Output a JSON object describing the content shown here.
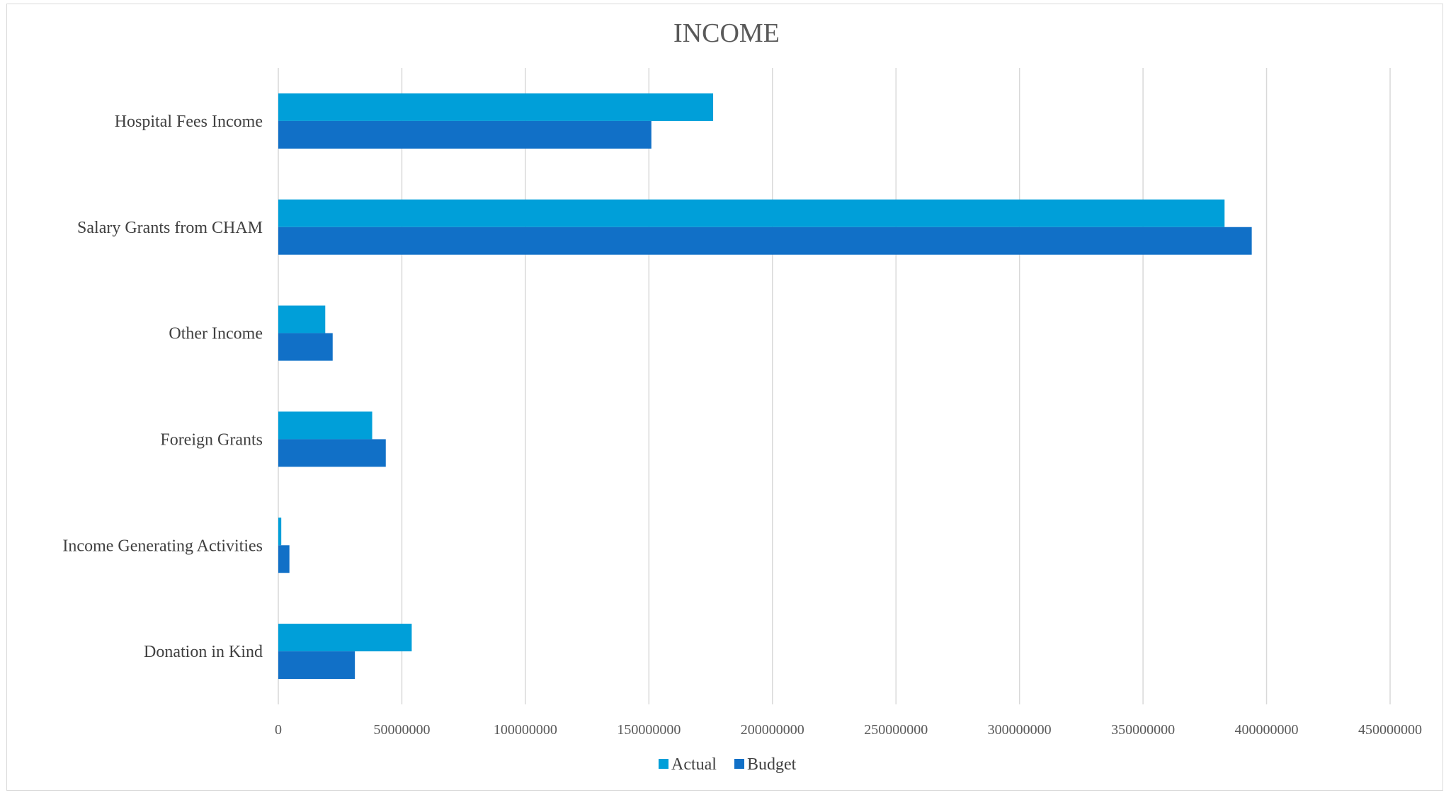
{
  "chart_data": {
    "type": "bar",
    "orientation": "horizontal",
    "title": "INCOME",
    "categories": [
      "Hospital Fees Income",
      "Salary Grants from CHAM",
      "Other Income",
      "Foreign Grants",
      "Income Generating Activities",
      "Donation in Kind"
    ],
    "series": [
      {
        "name": "Actual",
        "color": "#009fd9",
        "values": [
          176000000,
          383000000,
          19000000,
          38000000,
          1200000,
          54000000
        ]
      },
      {
        "name": "Budget",
        "color": "#1170c7",
        "values": [
          151000000,
          394000000,
          22000000,
          43500000,
          4500000,
          31000000
        ]
      }
    ],
    "xlim": [
      0,
      450000000
    ],
    "tick_values": [
      0,
      50000000,
      100000000,
      150000000,
      200000000,
      250000000,
      300000000,
      350000000,
      400000000,
      450000000
    ],
    "tick_labels": [
      "0",
      "50000000",
      "100000000",
      "150000000",
      "200000000",
      "250000000",
      "300000000",
      "350000000",
      "400000000",
      "450000000"
    ],
    "grid": "vertical",
    "legend": "bottom"
  }
}
